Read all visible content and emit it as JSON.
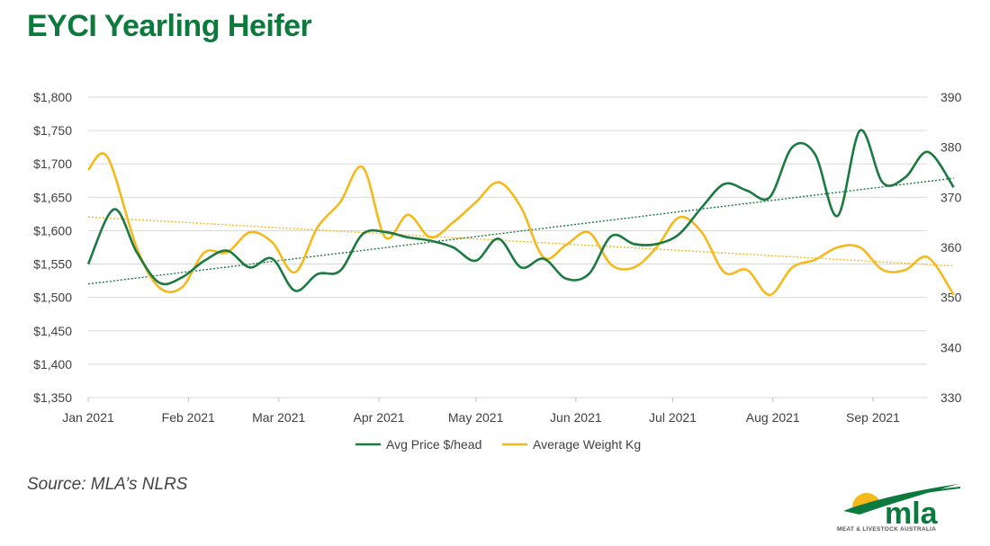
{
  "title": "EYCI Yearling Heifer",
  "source": "Source: MLA’s NLRS",
  "logo": {
    "text": "mla",
    "subtitle": "MEAT & LIVESTOCK AUSTRALIA"
  },
  "colors": {
    "title": "#0c7a3c",
    "price": "#1a7a40",
    "weight": "#f5b91c",
    "grid": "#d9d9d9"
  },
  "chart_data": {
    "type": "line",
    "title": "",
    "x_ticks": [
      "Jan 2021",
      "Feb 2021",
      "Mar 2021",
      "Apr 2021",
      "May 2021",
      "Jun 2021",
      "Jul 2021",
      "Aug 2021",
      "Sep 2021"
    ],
    "y_left": {
      "min": 1350,
      "max": 1800,
      "ticks": [
        "$1,350",
        "$1,400",
        "$1,450",
        "$1,500",
        "$1,550",
        "$1,600",
        "$1,650",
        "$1,700",
        "$1,750",
        "$1,800"
      ]
    },
    "y_right": {
      "min": 330,
      "max": 390,
      "ticks": [
        "330",
        "340",
        "350",
        "360",
        "370",
        "380",
        "390"
      ]
    },
    "grid": true,
    "legend_position": "bottom",
    "series": [
      {
        "name": "Avg Price $/head",
        "axis": "left",
        "trendline": true,
        "points": [
          [
            "2021-01-01",
            1550
          ],
          [
            "2021-01-09",
            1632
          ],
          [
            "2021-01-16",
            1568
          ],
          [
            "2021-01-23",
            1522
          ],
          [
            "2021-01-30",
            1530
          ],
          [
            "2021-02-06",
            1555
          ],
          [
            "2021-02-13",
            1570
          ],
          [
            "2021-02-20",
            1545
          ],
          [
            "2021-02-27",
            1558
          ],
          [
            "2021-03-06",
            1510
          ],
          [
            "2021-03-13",
            1535
          ],
          [
            "2021-03-20",
            1540
          ],
          [
            "2021-03-27",
            1595
          ],
          [
            "2021-04-03",
            1598
          ],
          [
            "2021-04-10",
            1590
          ],
          [
            "2021-04-17",
            1585
          ],
          [
            "2021-04-24",
            1575
          ],
          [
            "2021-05-01",
            1555
          ],
          [
            "2021-05-08",
            1588
          ],
          [
            "2021-05-15",
            1545
          ],
          [
            "2021-05-22",
            1558
          ],
          [
            "2021-05-29",
            1528
          ],
          [
            "2021-06-05",
            1535
          ],
          [
            "2021-06-12",
            1592
          ],
          [
            "2021-06-19",
            1580
          ],
          [
            "2021-06-26",
            1580
          ],
          [
            "2021-07-03",
            1595
          ],
          [
            "2021-07-10",
            1635
          ],
          [
            "2021-07-17",
            1670
          ],
          [
            "2021-07-24",
            1660
          ],
          [
            "2021-07-31",
            1650
          ],
          [
            "2021-08-07",
            1725
          ],
          [
            "2021-08-14",
            1715
          ],
          [
            "2021-08-21",
            1622
          ],
          [
            "2021-08-28",
            1750
          ],
          [
            "2021-09-04",
            1672
          ],
          [
            "2021-09-11",
            1680
          ],
          [
            "2021-09-18",
            1718
          ],
          [
            "2021-09-26",
            1665
          ]
        ]
      },
      {
        "name": "Average Weight Kg",
        "axis": "right",
        "trendline": true,
        "points": [
          [
            "2021-01-01",
            375.5
          ],
          [
            "2021-01-07",
            378
          ],
          [
            "2021-01-16",
            360
          ],
          [
            "2021-01-23",
            352
          ],
          [
            "2021-01-30",
            352
          ],
          [
            "2021-02-06",
            359
          ],
          [
            "2021-02-13",
            359
          ],
          [
            "2021-02-20",
            363
          ],
          [
            "2021-02-27",
            361
          ],
          [
            "2021-03-06",
            355
          ],
          [
            "2021-03-13",
            364
          ],
          [
            "2021-03-20",
            369
          ],
          [
            "2021-03-27",
            376
          ],
          [
            "2021-04-03",
            362
          ],
          [
            "2021-04-10",
            366.5
          ],
          [
            "2021-04-17",
            362
          ],
          [
            "2021-04-24",
            365
          ],
          [
            "2021-05-01",
            369
          ],
          [
            "2021-05-08",
            373
          ],
          [
            "2021-05-15",
            368
          ],
          [
            "2021-05-22",
            358
          ],
          [
            "2021-05-29",
            360.5
          ],
          [
            "2021-06-05",
            363
          ],
          [
            "2021-06-12",
            356.5
          ],
          [
            "2021-06-19",
            356
          ],
          [
            "2021-06-26",
            360
          ],
          [
            "2021-07-03",
            366
          ],
          [
            "2021-07-10",
            363
          ],
          [
            "2021-07-17",
            355
          ],
          [
            "2021-07-24",
            355.5
          ],
          [
            "2021-07-31",
            350.5
          ],
          [
            "2021-08-07",
            356
          ],
          [
            "2021-08-14",
            357.5
          ],
          [
            "2021-08-21",
            360
          ],
          [
            "2021-08-28",
            360
          ],
          [
            "2021-09-04",
            355.5
          ],
          [
            "2021-09-11",
            355.5
          ],
          [
            "2021-09-18",
            358
          ],
          [
            "2021-09-26",
            350.5
          ]
        ]
      }
    ]
  }
}
